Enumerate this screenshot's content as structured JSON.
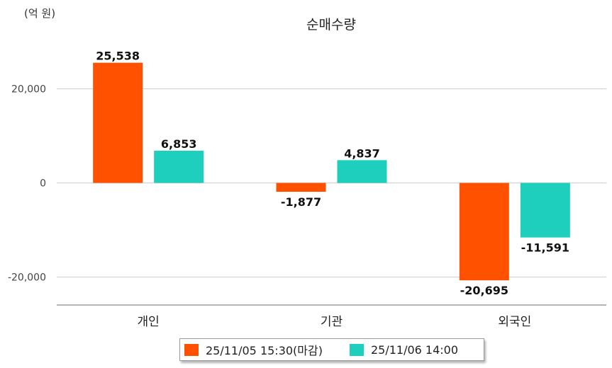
{
  "chart_data": {
    "type": "bar",
    "title": "순매수량",
    "unit_label": "(억 원)",
    "categories": [
      "개인",
      "기관",
      "외국인"
    ],
    "series": [
      {
        "name": "25/11/05 15:30(마감)",
        "color": "#ff5100",
        "values": [
          25538,
          -1877,
          -20695
        ],
        "labels": [
          "25,538",
          "-1,877",
          "-20,695"
        ]
      },
      {
        "name": "25/11/06 14:00",
        "color": "#1ecfbe",
        "values": [
          6853,
          4837,
          -11591
        ],
        "labels": [
          "6,853",
          "4,837",
          "-11,591"
        ]
      }
    ],
    "yticks": [
      {
        "value": 20000,
        "label": "20,000"
      },
      {
        "value": 0,
        "label": "0"
      },
      {
        "value": -20000,
        "label": "-20,000"
      }
    ],
    "ylim": [
      -26000,
      30000
    ],
    "grid": true,
    "legend_position": "bottom"
  }
}
